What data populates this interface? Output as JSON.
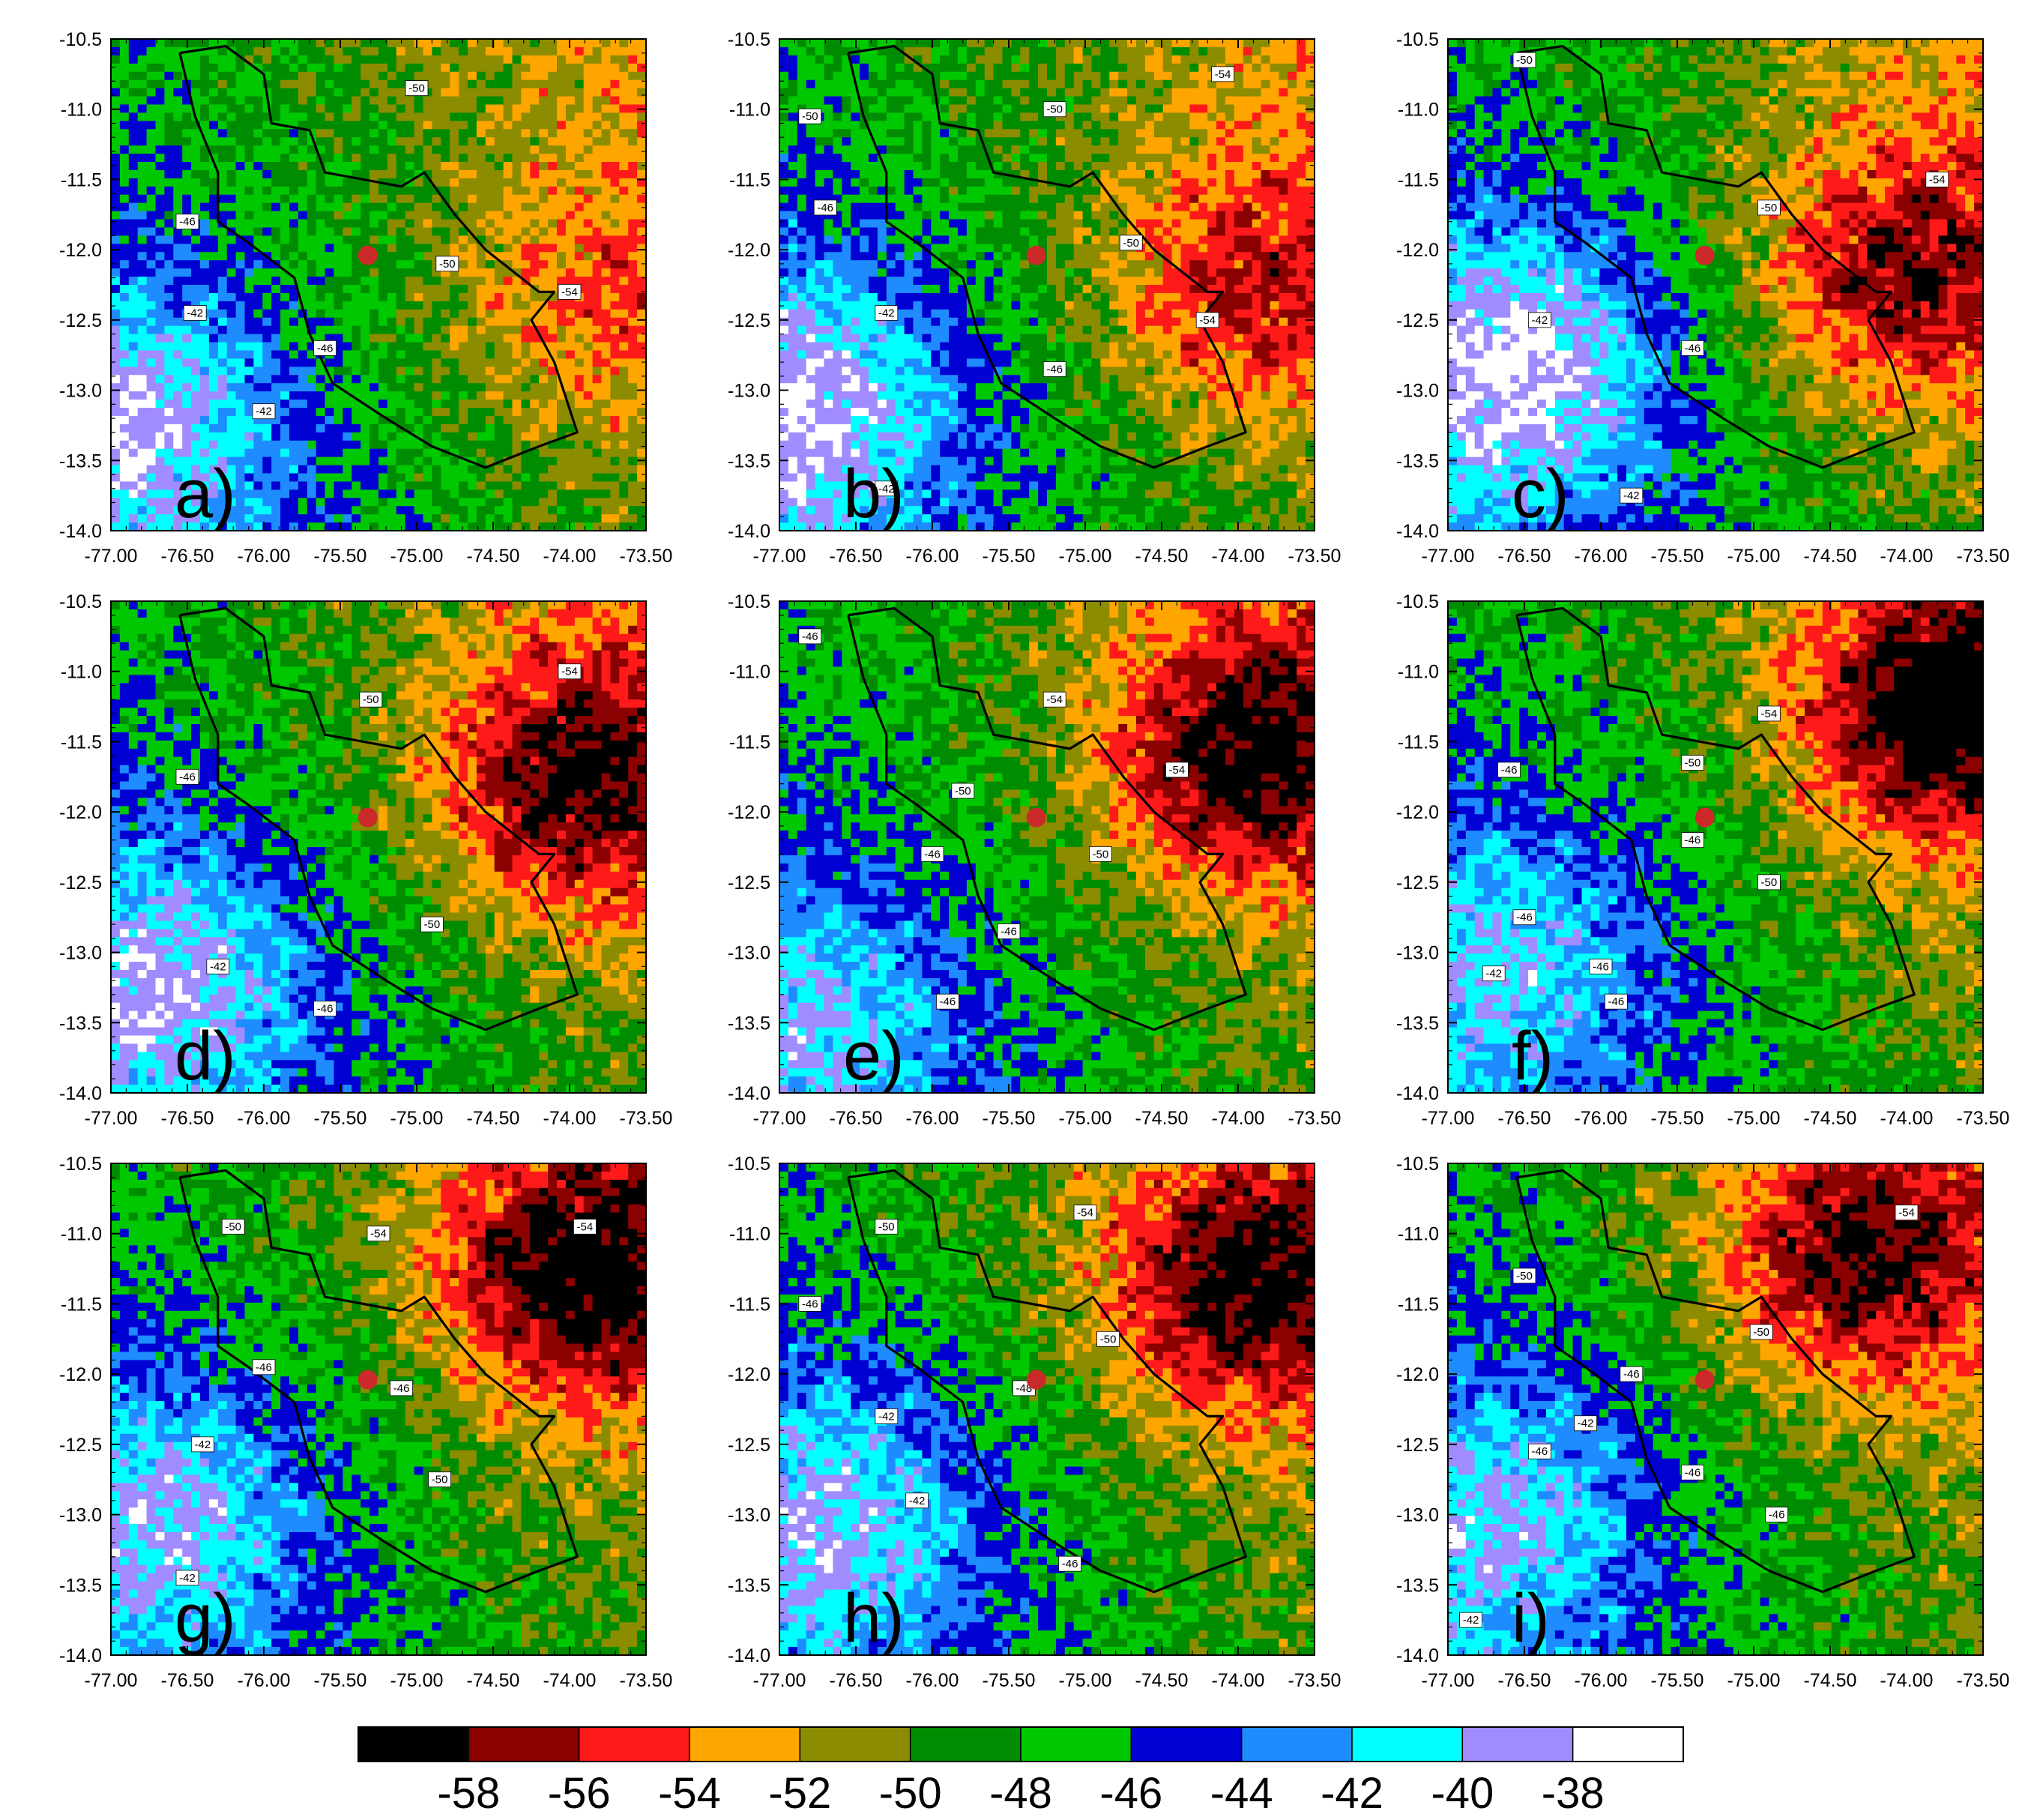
{
  "chart_data": {
    "type": "heatmap",
    "layout": {
      "rows": 3,
      "cols": 3
    },
    "xlim": [
      -77.0,
      -73.5
    ],
    "ylim": [
      -14.0,
      -10.5
    ],
    "x_ticks": [
      "-77.00",
      "-76.50",
      "-76.00",
      "-75.50",
      "-75.00",
      "-74.50",
      "-74.00",
      "-73.50"
    ],
    "y_ticks": [
      "-10.5",
      "-11.0",
      "-11.5",
      "-12.0",
      "-12.5",
      "-13.0",
      "-13.5",
      "-14.0"
    ],
    "marker": {
      "lon": -75.32,
      "lat": -12.04,
      "color": "#cc2a2a"
    },
    "colorbar": {
      "placement": "bottom",
      "colors": [
        "#000000",
        "#8b0000",
        "#ff1a1a",
        "#ffa500",
        "#8c8c00",
        "#008c00",
        "#00c800",
        "#0000d2",
        "#1e8cff",
        "#00ffff",
        "#a08cff",
        "#ffffff"
      ],
      "labels": [
        "-58",
        "-56",
        "-54",
        "-52",
        "-50",
        "-48",
        "-46",
        "-44",
        "-42",
        "-40",
        "-38"
      ]
    },
    "panels": [
      {
        "label": "a)",
        "warm_lon": -73.9,
        "warm_lat": -12.4,
        "warm_strength": 0.45,
        "cold_lon": -76.8,
        "cold_lat": -13.2,
        "cold_strength": 0.75,
        "contour_labels": [
          {
            "text": "-50",
            "lon": -75.0,
            "lat": -10.85
          },
          {
            "text": "-46",
            "lon": -76.5,
            "lat": -11.8
          },
          {
            "text": "-50",
            "lon": -74.8,
            "lat": -12.1
          },
          {
            "text": "-54",
            "lon": -74.0,
            "lat": -12.3
          },
          {
            "text": "-42",
            "lon": -76.45,
            "lat": -12.45
          },
          {
            "text": "-46",
            "lon": -75.6,
            "lat": -12.7
          },
          {
            "text": "-42",
            "lon": -76.0,
            "lat": -13.15
          }
        ]
      },
      {
        "label": "b)",
        "warm_lon": -74.0,
        "warm_lat": -12.3,
        "warm_strength": 0.7,
        "cold_lon": -76.8,
        "cold_lat": -13.1,
        "cold_strength": 0.85,
        "contour_labels": [
          {
            "text": "-54",
            "lon": -74.1,
            "lat": -10.75
          },
          {
            "text": "-50",
            "lon": -76.8,
            "lat": -11.05
          },
          {
            "text": "-50",
            "lon": -75.2,
            "lat": -11.0
          },
          {
            "text": "-46",
            "lon": -76.7,
            "lat": -11.7
          },
          {
            "text": "-50",
            "lon": -74.7,
            "lat": -11.95
          },
          {
            "text": "-42",
            "lon": -76.3,
            "lat": -12.45
          },
          {
            "text": "-54",
            "lon": -74.2,
            "lat": -12.5
          },
          {
            "text": "-46",
            "lon": -75.2,
            "lat": -12.85
          },
          {
            "text": "-42",
            "lon": -76.3,
            "lat": -13.7
          }
        ]
      },
      {
        "label": "c)",
        "warm_lon": -74.1,
        "warm_lat": -12.2,
        "warm_strength": 0.9,
        "cold_lon": -76.5,
        "cold_lat": -12.8,
        "cold_strength": 0.95,
        "contour_labels": [
          {
            "text": "-50",
            "lon": -76.5,
            "lat": -10.65
          },
          {
            "text": "-54",
            "lon": -73.8,
            "lat": -11.5
          },
          {
            "text": "-50",
            "lon": -74.9,
            "lat": -11.7
          },
          {
            "text": "-42",
            "lon": -76.4,
            "lat": -12.5
          },
          {
            "text": "-46",
            "lon": -75.4,
            "lat": -12.7
          },
          {
            "text": "-42",
            "lon": -75.8,
            "lat": -13.75
          }
        ]
      },
      {
        "label": "d)",
        "warm_lon": -74.0,
        "warm_lat": -11.8,
        "warm_strength": 1.0,
        "cold_lon": -76.6,
        "cold_lat": -13.2,
        "cold_strength": 0.75,
        "contour_labels": [
          {
            "text": "-50",
            "lon": -75.3,
            "lat": -11.2
          },
          {
            "text": "-54",
            "lon": -74.0,
            "lat": -11.0
          },
          {
            "text": "-46",
            "lon": -76.5,
            "lat": -11.75
          },
          {
            "text": "-50",
            "lon": -74.9,
            "lat": -12.8
          },
          {
            "text": "-42",
            "lon": -76.3,
            "lat": -13.1
          },
          {
            "text": "-46",
            "lon": -75.6,
            "lat": -13.4
          }
        ]
      },
      {
        "label": "e)",
        "warm_lon": -74.0,
        "warm_lat": -11.6,
        "warm_strength": 1.05,
        "cold_lon": -76.7,
        "cold_lat": -13.5,
        "cold_strength": 0.55,
        "contour_labels": [
          {
            "text": "-46",
            "lon": -76.8,
            "lat": -10.75
          },
          {
            "text": "-54",
            "lon": -75.2,
            "lat": -11.2
          },
          {
            "text": "-54",
            "lon": -74.4,
            "lat": -11.7
          },
          {
            "text": "-50",
            "lon": -75.8,
            "lat": -11.85
          },
          {
            "text": "-46",
            "lon": -76.0,
            "lat": -12.3
          },
          {
            "text": "-50",
            "lon": -74.9,
            "lat": -12.3
          },
          {
            "text": "-46",
            "lon": -75.5,
            "lat": -12.85
          },
          {
            "text": "-46",
            "lon": -75.9,
            "lat": -13.35
          }
        ]
      },
      {
        "label": "f)",
        "warm_lon": -73.8,
        "warm_lat": -11.3,
        "warm_strength": 1.1,
        "cold_lon": -76.5,
        "cold_lat": -13.0,
        "cold_strength": 0.6,
        "contour_labels": [
          {
            "text": "-54",
            "lon": -74.9,
            "lat": -11.3
          },
          {
            "text": "-46",
            "lon": -76.6,
            "lat": -11.7
          },
          {
            "text": "-50",
            "lon": -75.4,
            "lat": -11.65
          },
          {
            "text": "-46",
            "lon": -75.4,
            "lat": -12.2
          },
          {
            "text": "-50",
            "lon": -74.9,
            "lat": -12.5
          },
          {
            "text": "-46",
            "lon": -76.5,
            "lat": -12.75
          },
          {
            "text": "-42",
            "lon": -76.7,
            "lat": -13.15
          },
          {
            "text": "-46",
            "lon": -76.0,
            "lat": -13.1
          },
          {
            "text": "-46",
            "lon": -75.9,
            "lat": -13.35
          }
        ]
      },
      {
        "label": "g)",
        "warm_lon": -74.0,
        "warm_lat": -11.3,
        "warm_strength": 1.05,
        "cold_lon": -76.6,
        "cold_lat": -13.0,
        "cold_strength": 0.7,
        "contour_labels": [
          {
            "text": "-50",
            "lon": -76.2,
            "lat": -10.95
          },
          {
            "text": "-54",
            "lon": -75.25,
            "lat": -11.0
          },
          {
            "text": "-54",
            "lon": -73.9,
            "lat": -10.95
          },
          {
            "text": "-46",
            "lon": -76.0,
            "lat": -11.95
          },
          {
            "text": "-46",
            "lon": -75.1,
            "lat": -12.1
          },
          {
            "text": "-42",
            "lon": -76.4,
            "lat": -12.5
          },
          {
            "text": "-50",
            "lon": -74.85,
            "lat": -12.75
          },
          {
            "text": "-42",
            "lon": -76.5,
            "lat": -13.45
          }
        ]
      },
      {
        "label": "h)",
        "warm_lon": -74.0,
        "warm_lat": -11.4,
        "warm_strength": 1.0,
        "cold_lon": -76.6,
        "cold_lat": -13.0,
        "cold_strength": 0.7,
        "contour_labels": [
          {
            "text": "-50",
            "lon": -76.3,
            "lat": -10.95
          },
          {
            "text": "-54",
            "lon": -75.0,
            "lat": -10.85
          },
          {
            "text": "-46",
            "lon": -76.8,
            "lat": -11.5
          },
          {
            "text": "-50",
            "lon": -74.85,
            "lat": -11.75
          },
          {
            "text": "-48",
            "lon": -75.4,
            "lat": -12.1
          },
          {
            "text": "-42",
            "lon": -76.3,
            "lat": -12.3
          },
          {
            "text": "-42",
            "lon": -76.1,
            "lat": -12.9
          },
          {
            "text": "-46",
            "lon": -75.1,
            "lat": -13.35
          }
        ]
      },
      {
        "label": "i)",
        "warm_lon": -74.4,
        "warm_lat": -11.2,
        "warm_strength": 0.95,
        "cold_lon": -76.6,
        "cold_lat": -13.0,
        "cold_strength": 0.65,
        "contour_labels": [
          {
            "text": "-54",
            "lon": -74.0,
            "lat": -10.85
          },
          {
            "text": "-50",
            "lon": -76.5,
            "lat": -11.3
          },
          {
            "text": "-50",
            "lon": -74.95,
            "lat": -11.7
          },
          {
            "text": "-46",
            "lon": -75.8,
            "lat": -12.0
          },
          {
            "text": "-42",
            "lon": -76.1,
            "lat": -12.35
          },
          {
            "text": "-46",
            "lon": -76.4,
            "lat": -12.55
          },
          {
            "text": "-46",
            "lon": -75.4,
            "lat": -12.7
          },
          {
            "text": "-46",
            "lon": -74.85,
            "lat": -13.0
          },
          {
            "text": "-42",
            "lon": -76.85,
            "lat": -13.75
          }
        ]
      }
    ],
    "basin_outline": [
      [
        -76.55,
        -10.6
      ],
      [
        -76.25,
        -10.55
      ],
      [
        -76.0,
        -10.75
      ],
      [
        -75.95,
        -11.1
      ],
      [
        -75.7,
        -11.15
      ],
      [
        -75.6,
        -11.45
      ],
      [
        -75.1,
        -11.55
      ],
      [
        -74.95,
        -11.45
      ],
      [
        -74.75,
        -11.75
      ],
      [
        -74.55,
        -12.0
      ],
      [
        -74.2,
        -12.3
      ],
      [
        -74.1,
        -12.3
      ],
      [
        -74.25,
        -12.5
      ],
      [
        -74.1,
        -12.8
      ],
      [
        -73.95,
        -13.3
      ],
      [
        -74.2,
        -13.4
      ],
      [
        -74.55,
        -13.55
      ],
      [
        -74.9,
        -13.4
      ],
      [
        -75.2,
        -13.2
      ],
      [
        -75.55,
        -12.95
      ],
      [
        -75.7,
        -12.6
      ],
      [
        -75.8,
        -12.2
      ],
      [
        -76.1,
        -11.95
      ],
      [
        -76.3,
        -11.8
      ],
      [
        -76.3,
        -11.45
      ],
      [
        -76.45,
        -11.05
      ],
      [
        -76.55,
        -10.6
      ]
    ]
  }
}
